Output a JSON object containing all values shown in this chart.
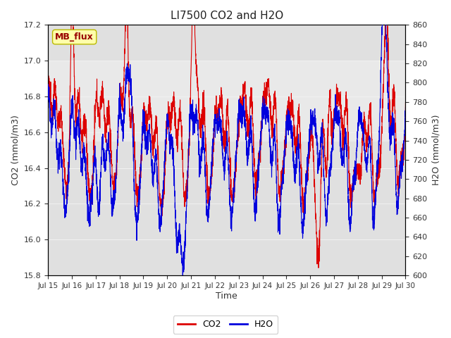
{
  "title": "LI7500 CO2 and H2O",
  "xlabel": "Time",
  "ylabel_left": "CO2 (mmol/m3)",
  "ylabel_right": "H2O (mmol/m3)",
  "annotation": "MB_flux",
  "co2_ylim": [
    15.8,
    17.2
  ],
  "h2o_ylim": [
    600,
    860
  ],
  "co2_yticks": [
    15.8,
    16.0,
    16.2,
    16.4,
    16.6,
    16.8,
    17.0,
    17.2
  ],
  "h2o_yticks": [
    600,
    620,
    640,
    660,
    680,
    700,
    720,
    740,
    760,
    780,
    800,
    820,
    840,
    860
  ],
  "co2_color": "#dd0000",
  "h2o_color": "#0000dd",
  "line_width": 0.8,
  "background_color": "#ffffff",
  "plot_bg_color": "#e0e0e0",
  "grid_color": "#f0f0f0",
  "band_low": 16.55,
  "band_high": 17.0,
  "annotation_bg": "#ffffaa",
  "annotation_border": "#bbbb00",
  "annotation_text_color": "#990000",
  "seed": 12345,
  "n_points": 3000,
  "figsize": [
    6.4,
    4.8
  ],
  "dpi": 100
}
